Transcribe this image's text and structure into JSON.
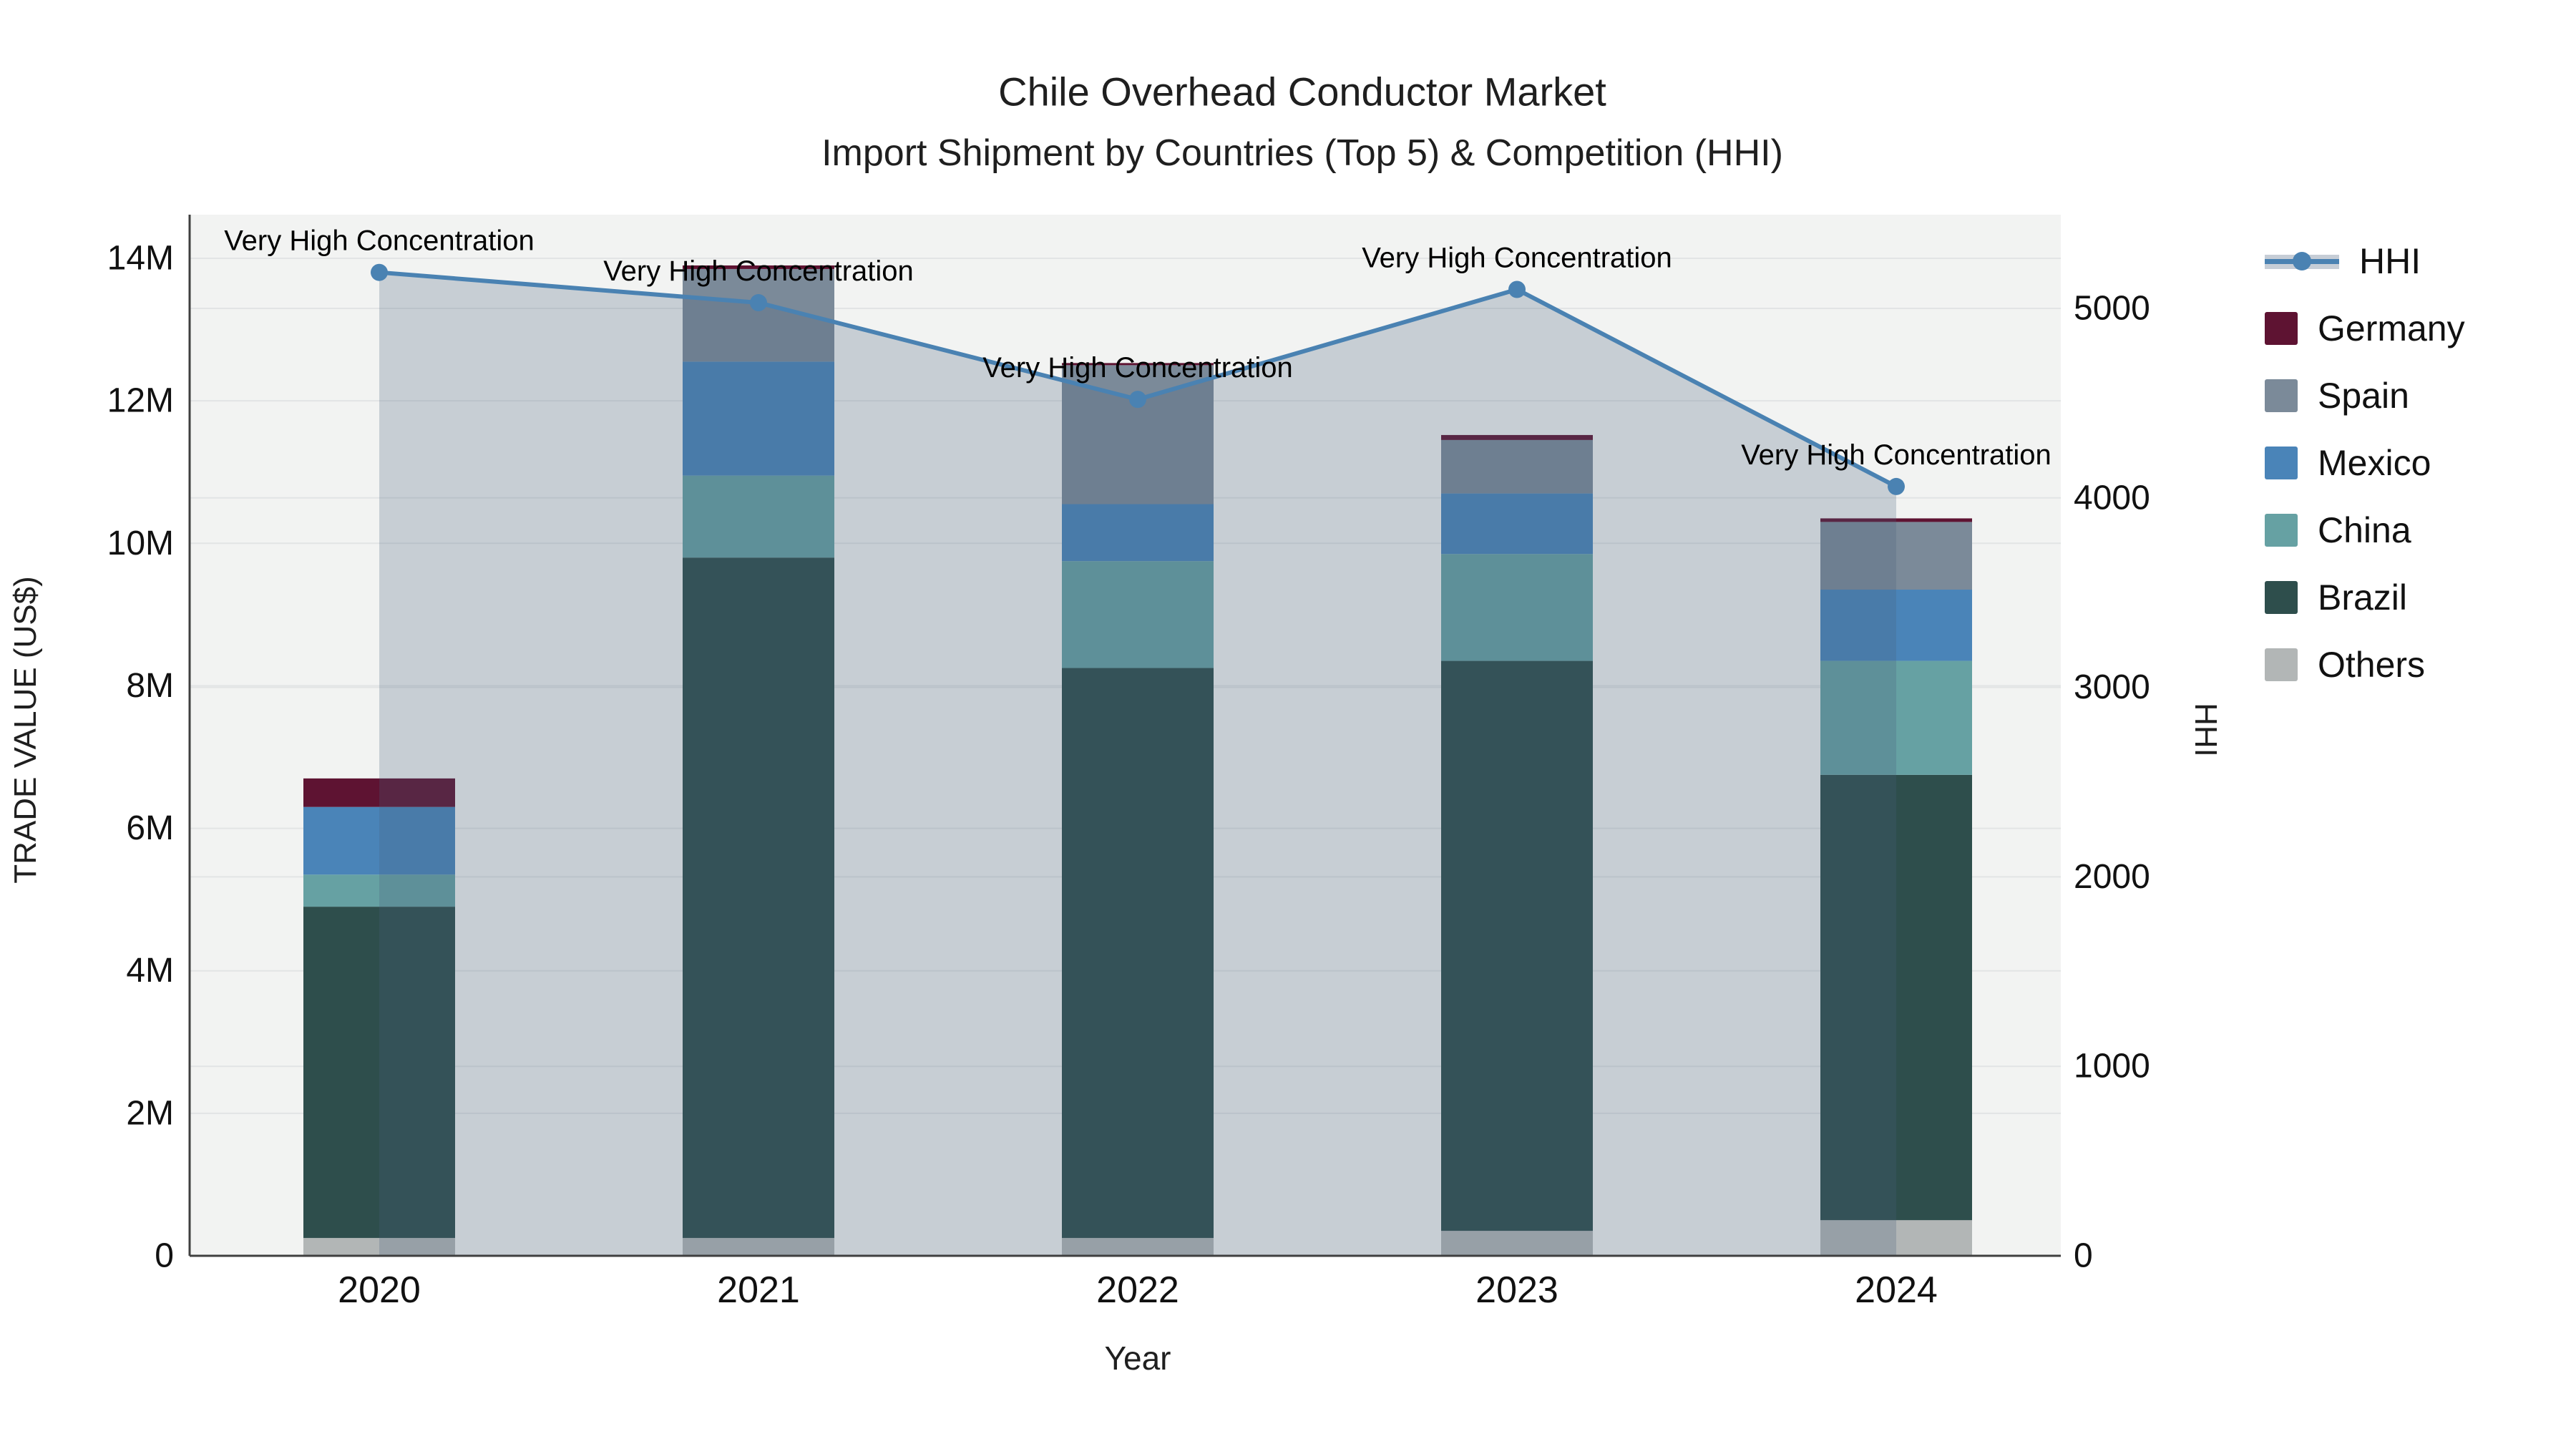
{
  "title": {
    "line1": "Chile Overhead Conductor Market",
    "line2": "Import Shipment by Countries (Top 5) & Competition (HHI)"
  },
  "axes": {
    "x_title": "Year",
    "y_left_title": "TRADE VALUE (US$)",
    "y_right_title": "HHI"
  },
  "legend": {
    "items": [
      {
        "label": "HHI"
      },
      {
        "label": "Germany"
      },
      {
        "label": "Spain"
      },
      {
        "label": "Mexico"
      },
      {
        "label": "China"
      },
      {
        "label": "Brazil"
      },
      {
        "label": "Others"
      }
    ]
  },
  "chart_data": {
    "type": "bar+line",
    "title": "Chile Overhead Conductor Market",
    "subtitle": "Import Shipment by Countries (Top 5) & Competition (HHI)",
    "categories": [
      "2020",
      "2021",
      "2022",
      "2023",
      "2024"
    ],
    "bar_unit": "million US$",
    "series": [
      {
        "name": "Germany",
        "color": "#5e1332",
        "values": [
          0.4,
          0.05,
          0.03,
          0.07,
          0.05
        ]
      },
      {
        "name": "Spain",
        "color": "#7b8a99",
        "values": [
          0.0,
          1.3,
          1.95,
          0.75,
          0.95
        ]
      },
      {
        "name": "Mexico",
        "color": "#4a84b8",
        "values": [
          0.95,
          1.6,
          0.8,
          0.85,
          1.0
        ]
      },
      {
        "name": "China",
        "color": "#66a1a3",
        "values": [
          0.45,
          1.15,
          1.5,
          1.5,
          1.6
        ]
      },
      {
        "name": "Brazil",
        "color": "#2e4e4c",
        "values": [
          4.65,
          9.55,
          8.0,
          8.0,
          6.25
        ]
      },
      {
        "name": "Others",
        "color": "#b2b6b6",
        "values": [
          0.25,
          0.25,
          0.25,
          0.35,
          0.5
        ]
      }
    ],
    "stack_order_bottom_to_top": [
      "Others",
      "Brazil",
      "China",
      "Mexico",
      "Spain",
      "Germany"
    ],
    "bar_totals": [
      6.7,
      13.9,
      12.53,
      11.52,
      10.35
    ],
    "line": {
      "name": "HHI",
      "color": "#4a82b2",
      "area_fill": "rgba(70,95,125,0.25)",
      "values": [
        5190,
        5030,
        4520,
        5100,
        4060
      ]
    },
    "annotations": [
      "Very High Concentration",
      "Very High Concentration",
      "Very High Concentration",
      "Very High Concentration",
      "Very High Concentration"
    ],
    "y_left": {
      "tick_labels": [
        "0",
        "2M",
        "4M",
        "6M",
        "8M",
        "10M",
        "12M",
        "14M"
      ],
      "tick_values_millions": [
        0,
        2,
        4,
        6,
        8,
        10,
        12,
        14
      ],
      "range_millions": [
        0,
        14.6
      ]
    },
    "y_right": {
      "tick_labels": [
        "0",
        "1000",
        "2000",
        "3000",
        "4000",
        "5000"
      ],
      "tick_values": [
        0,
        1000,
        2000,
        3000,
        4000,
        5000
      ],
      "range": [
        0,
        5500
      ]
    },
    "grid": true,
    "legend_position": "right",
    "plot_bg": "#f2f3f2",
    "grid_color": "#e2e4e5",
    "axis_color": "#3f3f3f",
    "text_color": "#111111"
  }
}
